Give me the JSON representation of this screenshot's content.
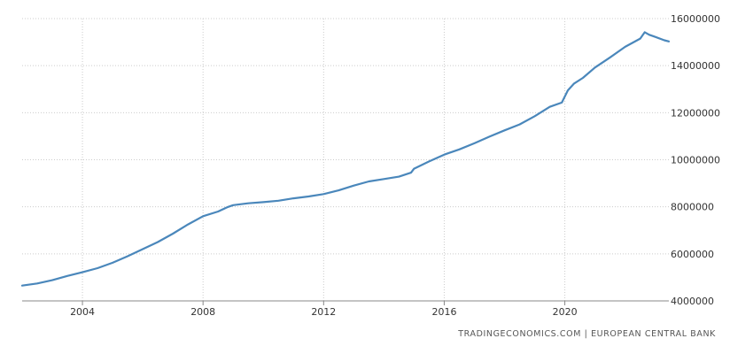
{
  "chart_data": {
    "type": "line",
    "title": "",
    "xlabel": "",
    "ylabel": "",
    "grid": true,
    "x_tick_labels": [
      "2004",
      "2008",
      "2012",
      "2016",
      "2020"
    ],
    "y_tick_labels": [
      "4000000",
      "6000000",
      "8000000",
      "10000000",
      "12000000",
      "14000000",
      "16000000"
    ],
    "y_ticks": [
      4000000,
      6000000,
      8000000,
      10000000,
      12000000,
      14000000,
      16000000
    ],
    "xlim": [
      2002.0,
      2023.45
    ],
    "ylim": [
      4000000,
      16000000
    ],
    "series": [
      {
        "line_color": "#4a87bb",
        "x": [
          2002.0,
          2002.5,
          2003.0,
          2003.5,
          2004.0,
          2004.5,
          2005.0,
          2005.5,
          2006.0,
          2006.5,
          2007.0,
          2007.5,
          2008.0,
          2008.5,
          2008.8,
          2009.0,
          2009.5,
          2010.0,
          2010.5,
          2011.0,
          2011.5,
          2012.0,
          2012.5,
          2013.0,
          2013.5,
          2014.0,
          2014.5,
          2014.9,
          2015.0,
          2015.5,
          2016.0,
          2016.5,
          2017.0,
          2017.5,
          2018.0,
          2018.5,
          2019.0,
          2019.5,
          2019.9,
          2020.1,
          2020.3,
          2020.6,
          2021.0,
          2021.5,
          2022.0,
          2022.5,
          2022.65,
          2022.8,
          2023.0,
          2023.3,
          2023.45
        ],
        "y": [
          4650000,
          4740000,
          4880000,
          5060000,
          5220000,
          5390000,
          5620000,
          5900000,
          6200000,
          6500000,
          6860000,
          7250000,
          7600000,
          7800000,
          7980000,
          8070000,
          8150000,
          8200000,
          8260000,
          8360000,
          8440000,
          8540000,
          8700000,
          8900000,
          9080000,
          9180000,
          9280000,
          9450000,
          9620000,
          9930000,
          10220000,
          10440000,
          10700000,
          10980000,
          11250000,
          11500000,
          11850000,
          12250000,
          12430000,
          12950000,
          13230000,
          13480000,
          13920000,
          14350000,
          14800000,
          15150000,
          15420000,
          15310000,
          15220000,
          15080000,
          15030000
        ]
      }
    ]
  },
  "attribution": "TRADINGECONOMICS.COM  |  EUROPEAN CENTRAL BANK"
}
